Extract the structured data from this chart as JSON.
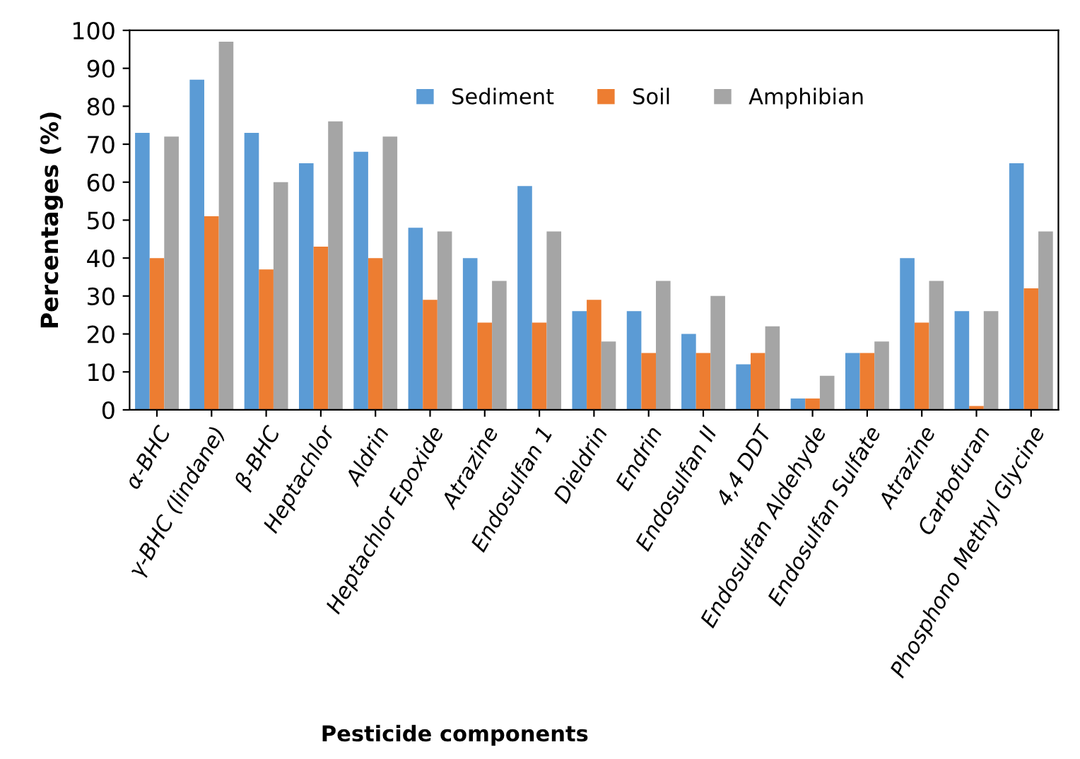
{
  "chart_data": {
    "type": "bar",
    "xlabel": "Pesticide components",
    "ylabel": "Percentages (%)",
    "categories": [
      "α-BHC",
      "γ-BHC (lindane)",
      "β-BHC",
      "Heptachlor",
      "Aldrin",
      "Heptachlor Epoxide",
      "Atrazine",
      "Endosulfan 1",
      "Dieldrin",
      "Endrin",
      "Endosulfan II",
      "4,4 DDT",
      "Endosulfan Aldehyde",
      "Endosulfan Sulfate",
      "Atrazine",
      "Carbofuran",
      "Phosphono Methyl Glycine"
    ],
    "series": [
      {
        "name": "Sediment",
        "color": "#5b9bd5",
        "values": [
          73,
          87,
          73,
          65,
          68,
          48,
          40,
          59,
          26,
          26,
          20,
          12,
          3,
          15,
          40,
          26,
          65
        ]
      },
      {
        "name": "Soil",
        "color": "#ed7d31",
        "values": [
          40,
          51,
          37,
          43,
          40,
          29,
          23,
          23,
          29,
          15,
          15,
          15,
          3,
          15,
          23,
          1,
          32
        ]
      },
      {
        "name": "Amphibian",
        "color": "#a5a5a5",
        "values": [
          72,
          97,
          60,
          76,
          72,
          47,
          34,
          47,
          18,
          34,
          30,
          22,
          9,
          18,
          34,
          26,
          47
        ]
      }
    ],
    "ylim": [
      0,
      100
    ],
    "yticks": [
      0,
      10,
      20,
      30,
      40,
      50,
      60,
      70,
      80,
      90,
      100
    ],
    "legend": "top"
  }
}
